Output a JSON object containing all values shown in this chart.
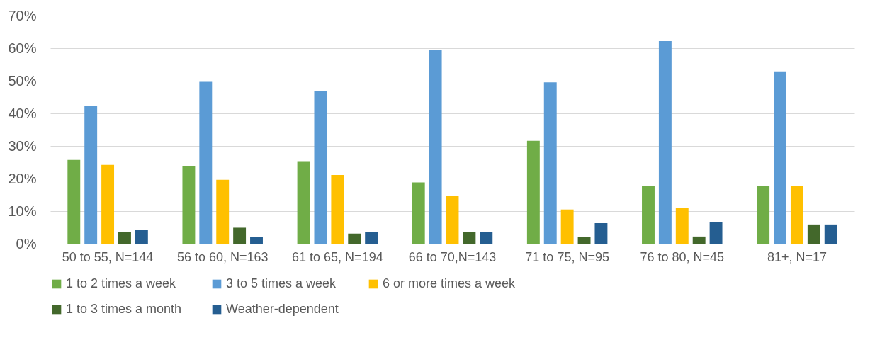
{
  "chart_data": {
    "type": "bar",
    "categories": [
      "50 to 55, N=144",
      "56 to 60, N=163",
      "61 to 65, N=194",
      "66 to 70,N=143",
      "71 to 75, N=95",
      "76 to 80, N=45",
      "81+, N=17"
    ],
    "series": [
      {
        "name": "1 to 2 times a week",
        "color": "#70ad47",
        "values": [
          25.7,
          23.9,
          25.3,
          18.8,
          31.6,
          17.8,
          17.6
        ]
      },
      {
        "name": "3 to 5 times a week",
        "color": "#5b9bd5",
        "values": [
          42.4,
          49.7,
          46.9,
          59.4,
          49.5,
          62.2,
          52.9
        ]
      },
      {
        "name": "6 or more times a week",
        "color": "#ffc000",
        "values": [
          24.2,
          19.6,
          21.1,
          14.7,
          10.5,
          11.1,
          17.6
        ]
      },
      {
        "name": "1 to 3 times a month",
        "color": "#43682b",
        "values": [
          3.5,
          4.9,
          3.1,
          3.5,
          2.1,
          2.2,
          5.9
        ]
      },
      {
        "name": "Weather-dependent",
        "color": "#255e91",
        "values": [
          4.2,
          2.0,
          3.6,
          3.5,
          6.3,
          6.7,
          5.9
        ]
      }
    ],
    "ylim": [
      0,
      70
    ],
    "yticks": [
      {
        "value": 0,
        "label": "0%"
      },
      {
        "value": 10,
        "label": "10%"
      },
      {
        "value": 20,
        "label": "20%"
      },
      {
        "value": 30,
        "label": "30%"
      },
      {
        "value": 40,
        "label": "40%"
      },
      {
        "value": 50,
        "label": "50%"
      },
      {
        "value": 60,
        "label": "60%"
      },
      {
        "value": 70,
        "label": "70%"
      }
    ],
    "grid": "y",
    "legend": "bottom"
  }
}
